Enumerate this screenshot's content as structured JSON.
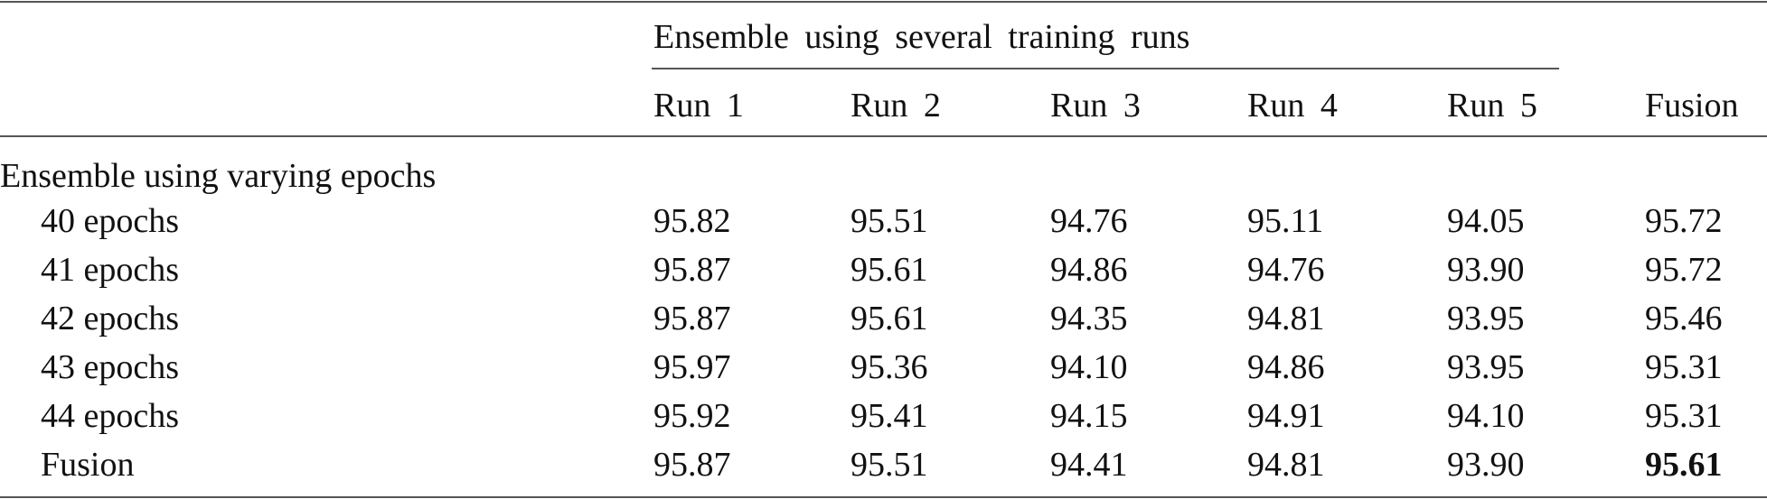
{
  "table": {
    "group_header": "Ensemble using several training runs",
    "columns": [
      "Run 1",
      "Run 2",
      "Run 3",
      "Run 4",
      "Run 5",
      "Fusion"
    ],
    "section_label": "Ensemble using varying epochs",
    "rows": [
      {
        "label": "40 epochs",
        "values": [
          "95.82",
          "95.51",
          "94.76",
          "95.11",
          "94.05",
          "95.72"
        ]
      },
      {
        "label": "41 epochs",
        "values": [
          "95.87",
          "95.61",
          "94.86",
          "94.76",
          "93.90",
          "95.72"
        ]
      },
      {
        "label": "42 epochs",
        "values": [
          "95.87",
          "95.61",
          "94.35",
          "94.81",
          "93.95",
          "95.46"
        ]
      },
      {
        "label": "43 epochs",
        "values": [
          "95.97",
          "95.36",
          "94.10",
          "94.86",
          "93.95",
          "95.31"
        ]
      },
      {
        "label": "44 epochs",
        "values": [
          "95.92",
          "95.41",
          "94.15",
          "94.91",
          "94.10",
          "95.31"
        ]
      },
      {
        "label": "Fusion",
        "values": [
          "95.87",
          "95.51",
          "94.41",
          "94.81",
          "93.90",
          "95.61"
        ]
      }
    ],
    "bold_cell": "95.61"
  }
}
